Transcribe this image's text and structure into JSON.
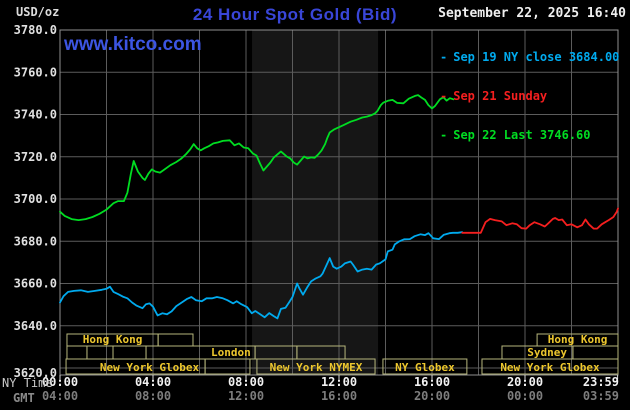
{
  "header": {
    "unit_label": "USD/oz",
    "title": "24 Hour Spot Gold (Bid)",
    "datetime": "September 22, 2025 16:40",
    "watermark": "www.kitco.com"
  },
  "legend": {
    "items": [
      {
        "marker": "-",
        "label": "Sep 19 NY close 3684.00",
        "color": "#00aaee"
      },
      {
        "marker": "-",
        "label": "Sep 21 Sunday",
        "color": "#f51f1f"
      },
      {
        "marker": "-",
        "label": "Sep 22 Last 3746.60",
        "color": "#00dd22"
      }
    ]
  },
  "colors": {
    "background": "#000000",
    "grid": "#5c5c5c",
    "border": "#909090",
    "band": "#161616",
    "session_border": "#b6b67c",
    "session_text": "#edc72e",
    "axis_text": "#e0e0e0",
    "ny_tick_text": "#f2f2f2",
    "gmt_tick_text": "#7d7d7d",
    "tick_mark": "#d8d8d8"
  },
  "sessions": {
    "rows": [
      {
        "cells": [
          {
            "start": 0.3,
            "end": 4.22,
            "label": "Hong Kong"
          },
          {
            "start": 4.22,
            "end": 5.72,
            "label": ""
          },
          {
            "start": 20.52,
            "end": 24,
            "label": "Hong Kong"
          }
        ]
      },
      {
        "cells": [
          {
            "start": 0.3,
            "end": 1.16,
            "label": ""
          },
          {
            "start": 1.16,
            "end": 2.28,
            "label": ""
          },
          {
            "start": 2.28,
            "end": 3.7,
            "label": ""
          },
          {
            "start": 3.7,
            "end": 8.39,
            "label": "London",
            "label_at": 7.35
          },
          {
            "start": 8.39,
            "end": 10.19,
            "label": ""
          },
          {
            "start": 10.19,
            "end": 12.26,
            "label": ""
          },
          {
            "start": 19.01,
            "end": 22.06,
            "label": "Sydney",
            "label_at": 20.95
          },
          {
            "start": 22.06,
            "end": 24,
            "label": ""
          }
        ]
      },
      {
        "cells": [
          {
            "start": 0.26,
            "end": 6.24,
            "label": "New York Globex",
            "label_at": 3.85
          },
          {
            "start": 6.24,
            "end": 8.17,
            "label": ""
          },
          {
            "start": 8.47,
            "end": 13.55,
            "label": "New York NYMEX"
          },
          {
            "start": 13.89,
            "end": 17.5,
            "label": "NY Globex"
          },
          {
            "start": 18.15,
            "end": 24,
            "label": "New York Globex"
          }
        ]
      }
    ]
  },
  "chart_data": {
    "type": "line",
    "title": "24 Hour Spot Gold (Bid)",
    "x_axis": {
      "label_ny": "NY Time",
      "label_gmt": "GMT",
      "range_hours": [
        0,
        24
      ],
      "grid_step_hours": 2,
      "ticks": [
        {
          "h": 0,
          "ny": "00:00",
          "gmt": "04:00"
        },
        {
          "h": 4,
          "ny": "04:00",
          "gmt": "08:00"
        },
        {
          "h": 8,
          "ny": "08:00",
          "gmt": "12:00"
        },
        {
          "h": 12,
          "ny": "12:00",
          "gmt": "16:00"
        },
        {
          "h": 16,
          "ny": "16:00",
          "gmt": "20:00"
        },
        {
          "h": 20,
          "ny": "20:00",
          "gmt": "00:00"
        },
        {
          "h": 23.983,
          "ny": "23:59",
          "gmt": "03:59"
        }
      ]
    },
    "y_axis": {
      "range": [
        3620,
        3780
      ],
      "ticks": [
        {
          "value": 3780,
          "label": "3780.0"
        },
        {
          "value": 3760,
          "label": "3760.0"
        },
        {
          "value": 3740,
          "label": "3740.0"
        },
        {
          "value": 3720,
          "label": "3720.0"
        },
        {
          "value": 3700,
          "label": "3700.0"
        },
        {
          "value": 3680,
          "label": "3680.0"
        },
        {
          "value": 3660,
          "label": "3660.0"
        },
        {
          "value": 3640,
          "label": "3640.0"
        },
        {
          "value": 3620,
          "label": "3620.0"
        }
      ]
    },
    "highlight_band_hours": [
      8.26,
      13.68
    ],
    "series": [
      {
        "name": "Sep 22 Last",
        "color": "#00dd22",
        "points": [
          [
            0,
            3694
          ],
          [
            0.2,
            3692
          ],
          [
            0.5,
            3690.5
          ],
          [
            0.8,
            3690
          ],
          [
            1.1,
            3690.5
          ],
          [
            1.4,
            3691.5
          ],
          [
            1.7,
            3693
          ],
          [
            2.0,
            3695
          ],
          [
            2.3,
            3698
          ],
          [
            2.5,
            3699
          ],
          [
            2.75,
            3699
          ],
          [
            2.9,
            3703
          ],
          [
            3.05,
            3712
          ],
          [
            3.17,
            3718
          ],
          [
            3.35,
            3713
          ],
          [
            3.55,
            3710
          ],
          [
            3.65,
            3709
          ],
          [
            3.8,
            3712
          ],
          [
            3.95,
            3714
          ],
          [
            4.1,
            3713
          ],
          [
            4.3,
            3712.5
          ],
          [
            4.5,
            3714
          ],
          [
            4.75,
            3716
          ],
          [
            5.0,
            3717.5
          ],
          [
            5.2,
            3719
          ],
          [
            5.4,
            3721
          ],
          [
            5.6,
            3723.5
          ],
          [
            5.75,
            3726
          ],
          [
            5.9,
            3724
          ],
          [
            6.05,
            3723
          ],
          [
            6.2,
            3724
          ],
          [
            6.4,
            3725
          ],
          [
            6.6,
            3726.3
          ],
          [
            6.8,
            3726.8
          ],
          [
            7.0,
            3727.5
          ],
          [
            7.3,
            3727.8
          ],
          [
            7.5,
            3725.4
          ],
          [
            7.7,
            3726.3
          ],
          [
            7.9,
            3724.4
          ],
          [
            8.1,
            3724
          ],
          [
            8.3,
            3721.5
          ],
          [
            8.45,
            3720.6
          ],
          [
            8.6,
            3716.8
          ],
          [
            8.75,
            3713.5
          ],
          [
            8.9,
            3715.4
          ],
          [
            9.05,
            3717.3
          ],
          [
            9.2,
            3719.7
          ],
          [
            9.35,
            3721.1
          ],
          [
            9.5,
            3722.5
          ],
          [
            9.6,
            3721.6
          ],
          [
            9.75,
            3720.1
          ],
          [
            9.9,
            3719.2
          ],
          [
            10.05,
            3717.3
          ],
          [
            10.2,
            3716.3
          ],
          [
            10.35,
            3718.2
          ],
          [
            10.5,
            3720.1
          ],
          [
            10.65,
            3719.2
          ],
          [
            10.8,
            3719.7
          ],
          [
            10.95,
            3719.5
          ],
          [
            11.1,
            3721
          ],
          [
            11.25,
            3723
          ],
          [
            11.4,
            3726
          ],
          [
            11.5,
            3729
          ],
          [
            11.6,
            3731.5
          ],
          [
            11.8,
            3733
          ],
          [
            12.0,
            3734
          ],
          [
            12.2,
            3735
          ],
          [
            12.5,
            3736.6
          ],
          [
            12.75,
            3737.5
          ],
          [
            13.0,
            3738.6
          ],
          [
            13.2,
            3739
          ],
          [
            13.4,
            3739.7
          ],
          [
            13.55,
            3740.5
          ],
          [
            13.66,
            3741.8
          ],
          [
            13.8,
            3744.5
          ],
          [
            13.9,
            3745.6
          ],
          [
            14.1,
            3746.5
          ],
          [
            14.3,
            3746.9
          ],
          [
            14.5,
            3745.5
          ],
          [
            14.77,
            3745.3
          ],
          [
            15.0,
            3747.5
          ],
          [
            15.27,
            3748.8
          ],
          [
            15.4,
            3749.2
          ],
          [
            15.55,
            3748
          ],
          [
            15.7,
            3746.9
          ],
          [
            15.84,
            3744.5
          ],
          [
            16.0,
            3742.9
          ],
          [
            16.13,
            3744
          ],
          [
            16.34,
            3747.2
          ],
          [
            16.49,
            3748.2
          ],
          [
            16.63,
            3746.6
          ],
          [
            16.77,
            3747.7
          ],
          [
            16.92,
            3747.2
          ]
        ]
      },
      {
        "name": "Sep 19 NY close",
        "color": "#00aaee",
        "points": [
          [
            0,
            3651
          ],
          [
            0.15,
            3654
          ],
          [
            0.35,
            3656
          ],
          [
            0.6,
            3656.5
          ],
          [
            0.9,
            3656.8
          ],
          [
            1.2,
            3656
          ],
          [
            1.5,
            3656.5
          ],
          [
            1.8,
            3657
          ],
          [
            2.0,
            3657.5
          ],
          [
            2.15,
            3658.5
          ],
          [
            2.3,
            3656
          ],
          [
            2.5,
            3655
          ],
          [
            2.7,
            3653.8
          ],
          [
            2.9,
            3653
          ],
          [
            3.1,
            3651
          ],
          [
            3.3,
            3649.5
          ],
          [
            3.55,
            3648.3
          ],
          [
            3.7,
            3650.2
          ],
          [
            3.85,
            3650.6
          ],
          [
            4.0,
            3649
          ],
          [
            4.2,
            3644.9
          ],
          [
            4.4,
            3645.9
          ],
          [
            4.6,
            3645.4
          ],
          [
            4.8,
            3646.8
          ],
          [
            5.0,
            3649.3
          ],
          [
            5.25,
            3651.1
          ],
          [
            5.45,
            3652.6
          ],
          [
            5.65,
            3653.6
          ],
          [
            5.85,
            3652.1
          ],
          [
            6.1,
            3651.6
          ],
          [
            6.3,
            3653
          ],
          [
            6.55,
            3653
          ],
          [
            6.75,
            3653.6
          ],
          [
            7.0,
            3653
          ],
          [
            7.2,
            3652.1
          ],
          [
            7.45,
            3650.6
          ],
          [
            7.6,
            3651.6
          ],
          [
            7.8,
            3650.2
          ],
          [
            8.05,
            3648.8
          ],
          [
            8.25,
            3645.9
          ],
          [
            8.4,
            3647
          ],
          [
            8.6,
            3645.5
          ],
          [
            8.8,
            3644
          ],
          [
            9.0,
            3646
          ],
          [
            9.2,
            3644.5
          ],
          [
            9.35,
            3643.5
          ],
          [
            9.5,
            3648
          ],
          [
            9.7,
            3648.5
          ],
          [
            9.85,
            3651
          ],
          [
            10.0,
            3653.6
          ],
          [
            10.2,
            3660
          ],
          [
            10.3,
            3657.6
          ],
          [
            10.45,
            3654.7
          ],
          [
            10.65,
            3658.5
          ],
          [
            10.8,
            3661
          ],
          [
            11.0,
            3662.4
          ],
          [
            11.2,
            3663.4
          ],
          [
            11.3,
            3664.8
          ],
          [
            11.6,
            3672
          ],
          [
            11.75,
            3668
          ],
          [
            11.9,
            3667
          ],
          [
            12.1,
            3668
          ],
          [
            12.25,
            3669.5
          ],
          [
            12.5,
            3670.4
          ],
          [
            12.6,
            3669
          ],
          [
            12.8,
            3665.7
          ],
          [
            13.0,
            3666.6
          ],
          [
            13.2,
            3667
          ],
          [
            13.4,
            3666.6
          ],
          [
            13.6,
            3669
          ],
          [
            13.75,
            3669.5
          ],
          [
            14.0,
            3671.4
          ],
          [
            14.1,
            3675.2
          ],
          [
            14.3,
            3676
          ],
          [
            14.4,
            3678.5
          ],
          [
            14.6,
            3680
          ],
          [
            14.8,
            3680.9
          ],
          [
            15.05,
            3681
          ],
          [
            15.25,
            3682.4
          ],
          [
            15.5,
            3683.3
          ],
          [
            15.7,
            3682.9
          ],
          [
            15.85,
            3683.8
          ],
          [
            16.05,
            3681.4
          ],
          [
            16.3,
            3681
          ],
          [
            16.5,
            3683
          ],
          [
            16.75,
            3683.8
          ],
          [
            16.9,
            3684
          ],
          [
            17.1,
            3684
          ],
          [
            17.3,
            3684.3
          ]
        ]
      },
      {
        "name": "Sep 21 Sunday",
        "color": "#f51f1f",
        "points": [
          [
            17.3,
            3684
          ],
          [
            17.7,
            3684
          ],
          [
            18.1,
            3684
          ],
          [
            18.3,
            3689
          ],
          [
            18.5,
            3690.6
          ],
          [
            18.7,
            3690
          ],
          [
            19.0,
            3689.4
          ],
          [
            19.2,
            3687.6
          ],
          [
            19.45,
            3688.5
          ],
          [
            19.65,
            3688
          ],
          [
            19.85,
            3686.2
          ],
          [
            20.05,
            3686
          ],
          [
            20.2,
            3687.6
          ],
          [
            20.4,
            3689
          ],
          [
            20.65,
            3688
          ],
          [
            20.85,
            3687
          ],
          [
            21.0,
            3688.5
          ],
          [
            21.2,
            3690.6
          ],
          [
            21.3,
            3691
          ],
          [
            21.45,
            3690
          ],
          [
            21.6,
            3690.3
          ],
          [
            21.8,
            3687.6
          ],
          [
            22.0,
            3688
          ],
          [
            22.25,
            3686.6
          ],
          [
            22.45,
            3687.6
          ],
          [
            22.6,
            3690.3
          ],
          [
            22.75,
            3688
          ],
          [
            22.95,
            3686
          ],
          [
            23.1,
            3686
          ],
          [
            23.3,
            3688
          ],
          [
            23.45,
            3689
          ],
          [
            23.6,
            3690
          ],
          [
            23.8,
            3691.5
          ],
          [
            23.95,
            3694
          ],
          [
            24,
            3695.5
          ]
        ]
      }
    ]
  }
}
